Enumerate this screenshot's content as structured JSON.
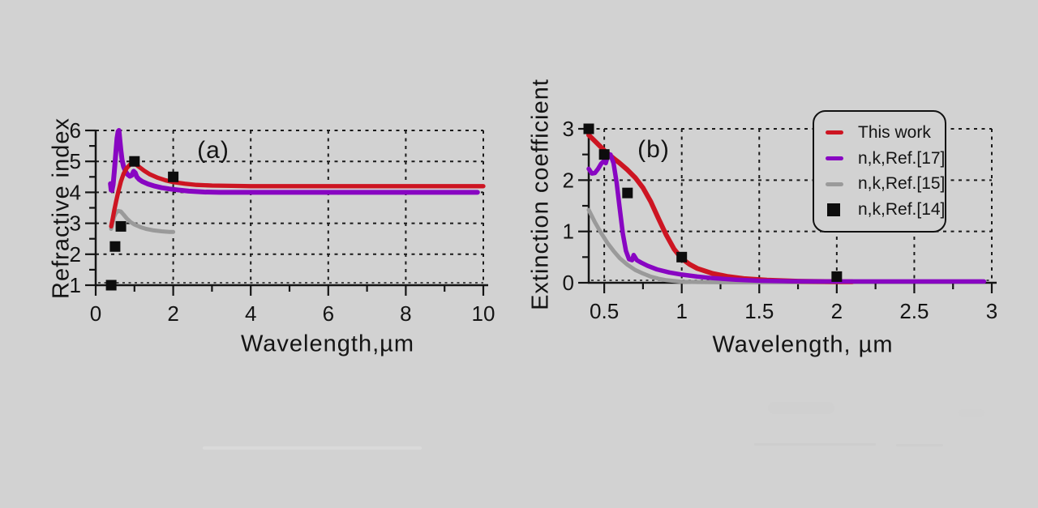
{
  "figure": {
    "background_color": "#d2d2d2",
    "text_color": "#141414",
    "accent_colors": {
      "this_work_red": "#cd1522",
      "ref17_purple": "#8806c2",
      "ref15_gray": "#9a9a9a",
      "ref14_black": "#0d0d0d"
    }
  },
  "chart_data": [
    {
      "type": "line",
      "panel": "a",
      "panel_label": "(a)",
      "xlabel": "Wavelength,µm",
      "ylabel": "Refractive index",
      "xlim": [
        0,
        10
      ],
      "ylim": [
        1,
        6
      ],
      "grid": "dashed",
      "x_ticks": {
        "values": [
          0,
          2,
          4,
          6,
          8,
          10
        ],
        "labels": [
          "0",
          "2",
          "4",
          "6",
          "8",
          "10"
        ]
      },
      "x_minor_ticks": [
        1,
        3,
        5,
        7,
        9
      ],
      "y_ticks": {
        "values": [
          1,
          2,
          3,
          4,
          5,
          6
        ],
        "labels": [
          "1",
          "2",
          "3",
          "4",
          "5",
          "6"
        ]
      },
      "y_minor_ticks": [
        1.5,
        2.5,
        3.5,
        4.5,
        5.5
      ],
      "x_gridlines": [
        2,
        4,
        6,
        8,
        10
      ],
      "y_gridlines": [
        2,
        3,
        4,
        5,
        6
      ],
      "series": [
        {
          "name": "n,k,Ref.[15]",
          "type": "line",
          "color": "#9a9a9a",
          "lw": 5,
          "points": [
            [
              0.4,
              2.82
            ],
            [
              0.43,
              3.0
            ],
            [
              0.47,
              3.2
            ],
            [
              0.52,
              3.33
            ],
            [
              0.58,
              3.4
            ],
            [
              0.65,
              3.38
            ],
            [
              0.72,
              3.28
            ],
            [
              0.8,
              3.16
            ],
            [
              0.9,
              3.04
            ],
            [
              1.0,
              2.96
            ],
            [
              1.15,
              2.88
            ],
            [
              1.3,
              2.82
            ],
            [
              1.5,
              2.77
            ],
            [
              1.7,
              2.74
            ],
            [
              1.9,
              2.72
            ],
            [
              2.0,
              2.72
            ]
          ]
        },
        {
          "name": "n,k,Ref.[17]",
          "type": "line",
          "color": "#8806c2",
          "lw": 6,
          "points": [
            [
              0.38,
              4.28
            ],
            [
              0.4,
              4.07
            ],
            [
              0.42,
              4.06
            ],
            [
              0.45,
              4.25
            ],
            [
              0.48,
              4.65
            ],
            [
              0.52,
              5.3
            ],
            [
              0.55,
              5.75
            ],
            [
              0.58,
              5.97
            ],
            [
              0.6,
              6.0
            ],
            [
              0.62,
              5.75
            ],
            [
              0.65,
              5.35
            ],
            [
              0.68,
              5.05
            ],
            [
              0.72,
              4.83
            ],
            [
              0.77,
              4.68
            ],
            [
              0.82,
              4.58
            ],
            [
              0.88,
              4.52
            ],
            [
              0.93,
              4.55
            ],
            [
              0.98,
              4.68
            ],
            [
              1.02,
              4.63
            ],
            [
              1.06,
              4.5
            ],
            [
              1.12,
              4.42
            ],
            [
              1.2,
              4.35
            ],
            [
              1.35,
              4.27
            ],
            [
              1.5,
              4.21
            ],
            [
              1.7,
              4.15
            ],
            [
              1.9,
              4.11
            ],
            [
              2.1,
              4.08
            ],
            [
              2.4,
              4.04
            ],
            [
              2.8,
              4.01
            ],
            [
              3.2,
              4.0
            ],
            [
              4.0,
              4.0
            ],
            [
              5.0,
              4.0
            ],
            [
              6.0,
              4.0
            ],
            [
              7.0,
              4.0
            ],
            [
              8.0,
              4.0
            ],
            [
              9.0,
              4.0
            ],
            [
              9.85,
              4.0
            ]
          ]
        },
        {
          "name": "This work",
          "type": "line",
          "color": "#cd1522",
          "lw": 5.3,
          "points": [
            [
              0.4,
              2.9
            ],
            [
              0.44,
              3.15
            ],
            [
              0.48,
              3.42
            ],
            [
              0.53,
              3.72
            ],
            [
              0.58,
              4.0
            ],
            [
              0.65,
              4.35
            ],
            [
              0.72,
              4.6
            ],
            [
              0.8,
              4.78
            ],
            [
              0.88,
              4.89
            ],
            [
              0.95,
              4.94
            ],
            [
              1.02,
              4.92
            ],
            [
              1.1,
              4.84
            ],
            [
              1.25,
              4.7
            ],
            [
              1.4,
              4.58
            ],
            [
              1.6,
              4.47
            ],
            [
              1.8,
              4.39
            ],
            [
              2.0,
              4.33
            ],
            [
              2.3,
              4.28
            ],
            [
              2.6,
              4.24
            ],
            [
              3.0,
              4.22
            ],
            [
              3.5,
              4.21
            ],
            [
              4.0,
              4.2
            ],
            [
              5.0,
              4.2
            ],
            [
              6.0,
              4.2
            ],
            [
              7.0,
              4.2
            ],
            [
              8.0,
              4.2
            ],
            [
              9.0,
              4.2
            ],
            [
              10.0,
              4.2
            ]
          ]
        },
        {
          "name": "n,k,Ref.[14]",
          "type": "scatter",
          "marker": "square",
          "color": "#0d0d0d",
          "points": [
            [
              0.4,
              1.0
            ],
            [
              0.5,
              2.25
            ],
            [
              0.65,
              2.9
            ],
            [
              1.0,
              5.0
            ],
            [
              2.0,
              4.5
            ]
          ]
        }
      ]
    },
    {
      "type": "line",
      "panel": "b",
      "panel_label": "(b)",
      "xlabel": "Wavelength, µm",
      "ylabel": "Extinction coefficient",
      "xlim": [
        0.4,
        3.0
      ],
      "ylim": [
        0,
        3
      ],
      "grid": "dashed",
      "x_ticks": {
        "values": [
          0.5,
          1,
          1.5,
          2,
          2.5,
          3
        ],
        "labels": [
          "0.5",
          "1",
          "1.5",
          "2",
          "2.5",
          "3"
        ]
      },
      "x_minor_ticks": [
        0.75,
        1.25,
        1.75,
        2.25,
        2.75
      ],
      "y_ticks": {
        "values": [
          0,
          1,
          2,
          3
        ],
        "labels": [
          "0",
          "1",
          "2",
          "3"
        ]
      },
      "y_minor_ticks": [
        0.5,
        1.5,
        2.5
      ],
      "x_gridlines": [
        0.5,
        1,
        1.5,
        2,
        2.5,
        3
      ],
      "y_gridlines": [
        1,
        2,
        3
      ],
      "legend": {
        "position": "upper right",
        "entries": [
          {
            "label": "This work",
            "swatch": "dash",
            "color": "#cd1522"
          },
          {
            "label": "n,k,Ref.[17]",
            "swatch": "dash",
            "color": "#8806c2"
          },
          {
            "label": "n,k,Ref.[15]",
            "swatch": "dash",
            "color": "#9a9a9a"
          },
          {
            "label": "n,k,Ref.[14]",
            "swatch": "square",
            "color": "#0d0d0d"
          }
        ]
      },
      "series": [
        {
          "name": "n,k,Ref.[15]",
          "type": "line",
          "color": "#9a9a9a",
          "lw": 5,
          "points": [
            [
              0.4,
              1.42
            ],
            [
              0.44,
              1.18
            ],
            [
              0.48,
              0.97
            ],
            [
              0.52,
              0.78
            ],
            [
              0.56,
              0.62
            ],
            [
              0.6,
              0.48
            ],
            [
              0.65,
              0.35
            ],
            [
              0.7,
              0.25
            ],
            [
              0.75,
              0.18
            ],
            [
              0.8,
              0.12
            ],
            [
              0.85,
              0.08
            ],
            [
              0.9,
              0.05
            ],
            [
              1.0,
              0.02
            ],
            [
              1.1,
              0.015
            ],
            [
              1.3,
              0.01
            ],
            [
              1.6,
              0.01
            ],
            [
              2.0,
              0.01
            ]
          ]
        },
        {
          "name": "This work",
          "type": "line",
          "color": "#cd1522",
          "lw": 6,
          "points": [
            [
              0.4,
              2.88
            ],
            [
              0.45,
              2.73
            ],
            [
              0.5,
              2.58
            ],
            [
              0.55,
              2.45
            ],
            [
              0.6,
              2.33
            ],
            [
              0.65,
              2.2
            ],
            [
              0.7,
              2.05
            ],
            [
              0.75,
              1.85
            ],
            [
              0.8,
              1.58
            ],
            [
              0.85,
              1.25
            ],
            [
              0.9,
              0.93
            ],
            [
              0.95,
              0.66
            ],
            [
              1.0,
              0.47
            ],
            [
              1.05,
              0.36
            ],
            [
              1.1,
              0.28
            ],
            [
              1.2,
              0.18
            ],
            [
              1.3,
              0.12
            ],
            [
              1.4,
              0.08
            ],
            [
              1.55,
              0.05
            ],
            [
              1.75,
              0.03
            ],
            [
              2.0,
              0.02
            ],
            [
              2.1,
              0.02
            ]
          ]
        },
        {
          "name": "n,k,Ref.[17]",
          "type": "line",
          "color": "#8806c2",
          "lw": 5.5,
          "points": [
            [
              0.4,
              2.22
            ],
            [
              0.42,
              2.13
            ],
            [
              0.44,
              2.14
            ],
            [
              0.46,
              2.22
            ],
            [
              0.48,
              2.32
            ],
            [
              0.5,
              2.38
            ],
            [
              0.51,
              2.33
            ],
            [
              0.52,
              2.44
            ],
            [
              0.54,
              2.5
            ],
            [
              0.56,
              2.33
            ],
            [
              0.58,
              1.95
            ],
            [
              0.6,
              1.45
            ],
            [
              0.62,
              0.95
            ],
            [
              0.64,
              0.62
            ],
            [
              0.66,
              0.46
            ],
            [
              0.68,
              0.44
            ],
            [
              0.69,
              0.54
            ],
            [
              0.71,
              0.44
            ],
            [
              0.74,
              0.39
            ],
            [
              0.78,
              0.33
            ],
            [
              0.84,
              0.26
            ],
            [
              0.92,
              0.2
            ],
            [
              1.0,
              0.16
            ],
            [
              1.1,
              0.12
            ],
            [
              1.2,
              0.09
            ],
            [
              1.35,
              0.06
            ],
            [
              1.5,
              0.04
            ],
            [
              1.7,
              0.03
            ],
            [
              2.0,
              0.025
            ],
            [
              2.5,
              0.025
            ],
            [
              2.95,
              0.025
            ]
          ]
        },
        {
          "name": "n,k,Ref.[14]",
          "type": "scatter",
          "marker": "square",
          "color": "#0d0d0d",
          "points": [
            [
              0.4,
              3.0
            ],
            [
              0.5,
              2.5
            ],
            [
              0.65,
              1.75
            ],
            [
              1.0,
              0.5
            ],
            [
              2.0,
              0.12
            ]
          ]
        }
      ]
    }
  ]
}
